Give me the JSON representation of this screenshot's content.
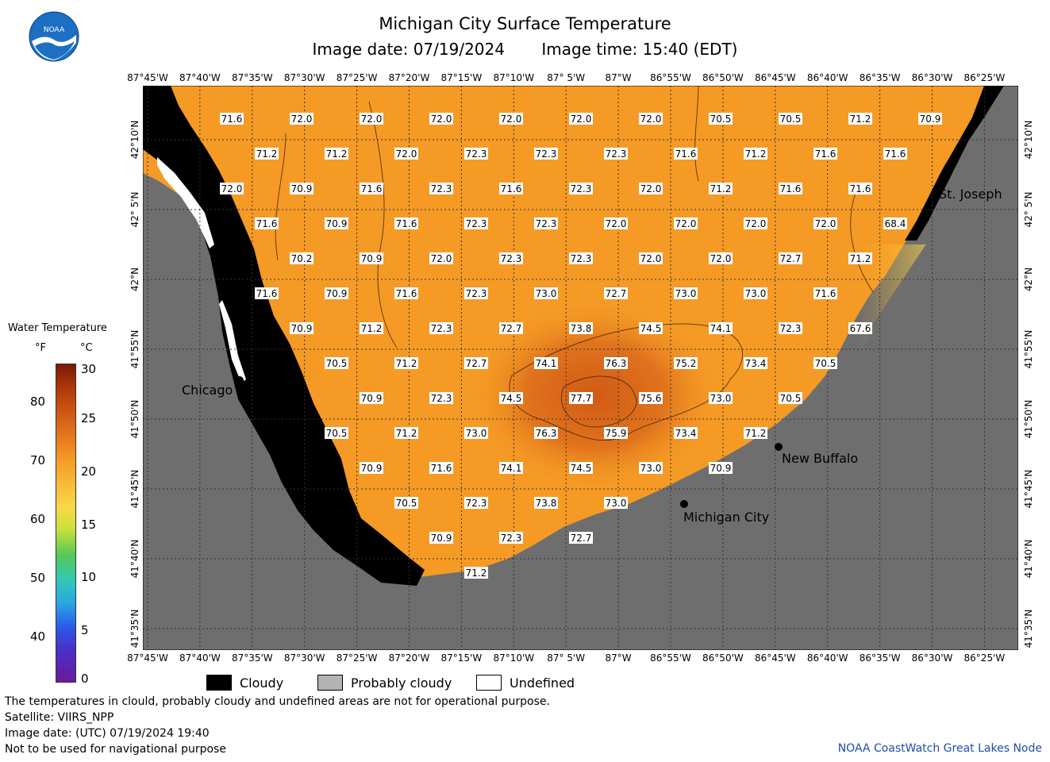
{
  "header": {
    "title": "Michigan City Surface Temperature",
    "image_date": "Image date: 07/19/2024",
    "image_time": "Image time: 15:40 (EDT)"
  },
  "logo": {
    "text": "NOAA",
    "icon": "noaa-logo"
  },
  "axes": {
    "lon_labels": [
      "87°45'W",
      "87°40'W",
      "87°35'W",
      "87°30'W",
      "87°25'W",
      "87°20'W",
      "87°15'W",
      "87°10'W",
      "87° 5'W",
      "87°W",
      "86°55'W",
      "86°50'W",
      "86°45'W",
      "86°40'W",
      "86°35'W",
      "86°30'W",
      "86°25'W"
    ],
    "lat_labels": [
      "42°10'N",
      "42° 5'N",
      "42°N",
      "41°55'N",
      "41°50'N",
      "41°45'N",
      "41°40'N",
      "41°35'N"
    ]
  },
  "temperature_labels": [
    [
      "71.6",
      1,
      1
    ],
    [
      "72.0",
      2,
      1
    ],
    [
      "72.0",
      3,
      1
    ],
    [
      "72.0",
      4,
      1
    ],
    [
      "72.0",
      5,
      1
    ],
    [
      "72.0",
      6,
      1
    ],
    [
      "72.0",
      7,
      1
    ],
    [
      "70.5",
      8,
      1
    ],
    [
      "70.5",
      9,
      1
    ],
    [
      "71.2",
      10,
      1
    ],
    [
      "70.9",
      11,
      1
    ],
    [
      "71.2",
      1.5,
      2
    ],
    [
      "71.2",
      2.5,
      2
    ],
    [
      "72.0",
      3.5,
      2
    ],
    [
      "72.3",
      4.5,
      2
    ],
    [
      "72.3",
      5.5,
      2
    ],
    [
      "72.3",
      6.5,
      2
    ],
    [
      "71.6",
      7.5,
      2
    ],
    [
      "71.2",
      8.5,
      2
    ],
    [
      "71.6",
      9.5,
      2
    ],
    [
      "71.6",
      10.5,
      2
    ],
    [
      "72.0",
      1,
      3
    ],
    [
      "70.9",
      2,
      3
    ],
    [
      "71.6",
      3,
      3
    ],
    [
      "72.3",
      4,
      3
    ],
    [
      "71.6",
      5,
      3
    ],
    [
      "72.3",
      6,
      3
    ],
    [
      "72.0",
      7,
      3
    ],
    [
      "71.2",
      8,
      3
    ],
    [
      "71.6",
      9,
      3
    ],
    [
      "71.6",
      10,
      3
    ],
    [
      "71.6",
      1.5,
      4
    ],
    [
      "70.9",
      2.5,
      4
    ],
    [
      "71.6",
      3.5,
      4
    ],
    [
      "72.3",
      4.5,
      4
    ],
    [
      "72.3",
      5.5,
      4
    ],
    [
      "72.0",
      6.5,
      4
    ],
    [
      "72.0",
      7.5,
      4
    ],
    [
      "72.0",
      8.5,
      4
    ],
    [
      "72.0",
      9.5,
      4
    ],
    [
      "68.4",
      10.5,
      4
    ],
    [
      "70.2",
      2,
      5
    ],
    [
      "70.9",
      3,
      5
    ],
    [
      "72.0",
      4,
      5
    ],
    [
      "72.3",
      5,
      5
    ],
    [
      "72.3",
      6,
      5
    ],
    [
      "72.0",
      7,
      5
    ],
    [
      "72.0",
      8,
      5
    ],
    [
      "72.7",
      9,
      5
    ],
    [
      "71.2",
      10,
      5
    ],
    [
      "71.6",
      1.5,
      6
    ],
    [
      "70.9",
      2.5,
      6
    ],
    [
      "71.6",
      3.5,
      6
    ],
    [
      "72.3",
      4.5,
      6
    ],
    [
      "73.0",
      5.5,
      6
    ],
    [
      "72.7",
      6.5,
      6
    ],
    [
      "73.0",
      7.5,
      6
    ],
    [
      "73.0",
      8.5,
      6
    ],
    [
      "71.6",
      9.5,
      6
    ],
    [
      "70.9",
      2,
      7
    ],
    [
      "71.2",
      3,
      7
    ],
    [
      "72.3",
      4,
      7
    ],
    [
      "72.7",
      5,
      7
    ],
    [
      "73.8",
      6,
      7
    ],
    [
      "74.5",
      7,
      7
    ],
    [
      "74.1",
      8,
      7
    ],
    [
      "72.3",
      9,
      7
    ],
    [
      "67.6",
      10,
      7
    ],
    [
      "70.5",
      2.5,
      8
    ],
    [
      "71.2",
      3.5,
      8
    ],
    [
      "72.7",
      4.5,
      8
    ],
    [
      "74.1",
      5.5,
      8
    ],
    [
      "76.3",
      6.5,
      8
    ],
    [
      "75.2",
      7.5,
      8
    ],
    [
      "73.4",
      8.5,
      8
    ],
    [
      "70.5",
      9.5,
      8
    ],
    [
      "70.9",
      3,
      9
    ],
    [
      "72.3",
      4,
      9
    ],
    [
      "74.5",
      5,
      9
    ],
    [
      "77.7",
      6,
      9
    ],
    [
      "75.6",
      7,
      9
    ],
    [
      "73.0",
      8,
      9
    ],
    [
      "70.5",
      9,
      9
    ],
    [
      "70.5",
      2.5,
      10
    ],
    [
      "71.2",
      3.5,
      10
    ],
    [
      "73.0",
      4.5,
      10
    ],
    [
      "76.3",
      5.5,
      10
    ],
    [
      "75.9",
      6.5,
      10
    ],
    [
      "73.4",
      7.5,
      10
    ],
    [
      "71.2",
      8.5,
      10
    ],
    [
      "70.9",
      3,
      11
    ],
    [
      "71.6",
      4,
      11
    ],
    [
      "74.1",
      5,
      11
    ],
    [
      "74.5",
      6,
      11
    ],
    [
      "73.0",
      7,
      11
    ],
    [
      "70.9",
      8,
      11
    ],
    [
      "70.5",
      3.5,
      12
    ],
    [
      "72.3",
      4.5,
      12
    ],
    [
      "73.8",
      5.5,
      12
    ],
    [
      "73.0",
      6.5,
      12
    ],
    [
      "70.9",
      4,
      13
    ],
    [
      "72.3",
      5,
      13
    ],
    [
      "72.7",
      6,
      13
    ],
    [
      "71.2",
      4.5,
      14
    ]
  ],
  "cities": {
    "chicago": "Chicago",
    "st_joseph": "St. Joseph",
    "new_buffalo": "New Buffalo",
    "michigan_city": "Michigan City"
  },
  "legend": {
    "title": "Water Temperature",
    "unit_f": "°F",
    "unit_c": "°C",
    "f_ticks": [
      "80",
      "70",
      "60",
      "50",
      "40"
    ],
    "c_ticks": [
      "30",
      "25",
      "20",
      "15",
      "10",
      "5",
      "0"
    ]
  },
  "key": {
    "cloudy": "Cloudy",
    "probably_cloudy": "Probably cloudy",
    "undefined": "Undefined"
  },
  "footer": {
    "line1": "The temperatures in clould, probably cloudy and undefined areas are not for operational purpose.",
    "line2": "Satellite: VIIRS_NPP",
    "line3": "Image date: (UTC) 07/19/2024  19:40",
    "line4": "Not to be used for navigational purpose",
    "credit": "NOAA CoastWatch Great Lakes Node"
  },
  "colors": {
    "land": "#6e6e6e",
    "water": "#f59a25",
    "water_warm": "#d9621a",
    "water_cool": "#fbd23f",
    "cloud": "#000000",
    "probably_cloudy": "#b3b3b3",
    "undefined": "#ffffff",
    "credit": "#1f4ea8"
  }
}
